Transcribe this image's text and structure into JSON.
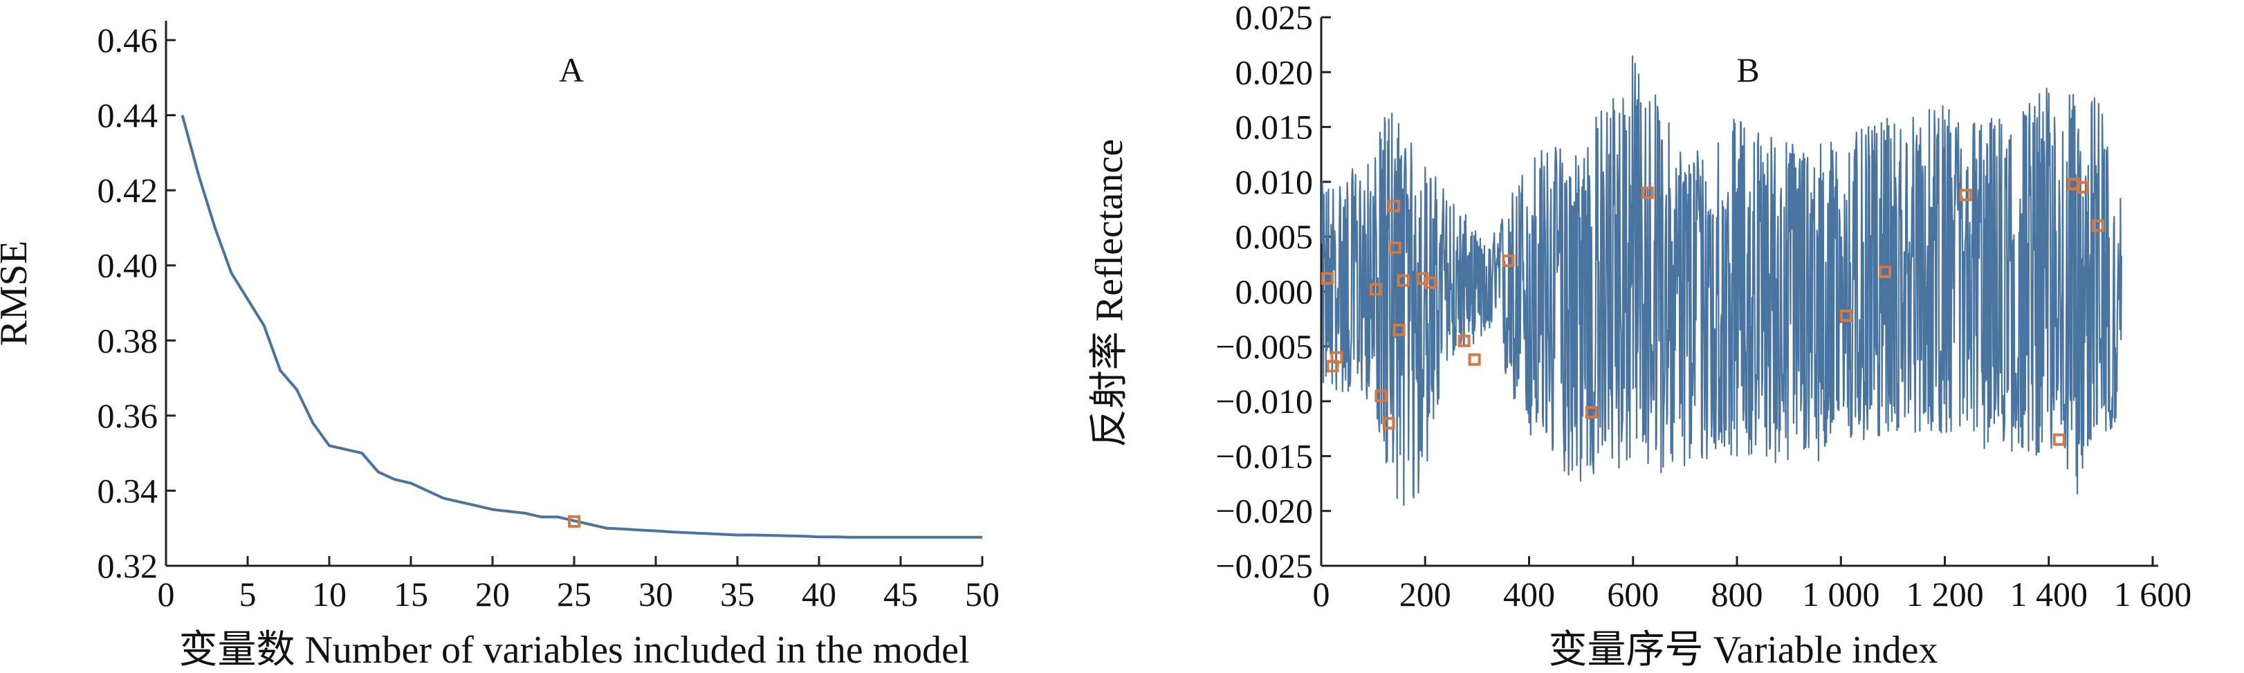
{
  "colors": {
    "line": "#4a74a0",
    "marker": "#d27a45",
    "axis": "#222222"
  },
  "chart_data": [
    {
      "type": "line",
      "panel_label": "A",
      "title": "",
      "xlabel": "变量数 Number of variables included in the model",
      "ylabel": "RMSE",
      "xlim": [
        0,
        50
      ],
      "ylim": [
        0.32,
        0.46
      ],
      "xticks": [
        0,
        5,
        10,
        15,
        20,
        25,
        30,
        35,
        40,
        45,
        50
      ],
      "yticks": [
        0.32,
        0.34,
        0.36,
        0.38,
        0.4,
        0.42,
        0.44,
        0.46
      ],
      "xtick_labels": [
        "0",
        "5",
        "10",
        "15",
        "20",
        "25",
        "30",
        "35",
        "40",
        "45",
        "50"
      ],
      "ytick_labels": [
        "0.32",
        "0.34",
        "0.36",
        "0.38",
        "0.40",
        "0.42",
        "0.44",
        "0.46"
      ],
      "grid": false,
      "series": [
        {
          "x": [
            1,
            2,
            3,
            4,
            5,
            6,
            7,
            8,
            9,
            10,
            11,
            12,
            13,
            14,
            15,
            16,
            17,
            18,
            19,
            20,
            21,
            22,
            23,
            24,
            25,
            26,
            27,
            28,
            29,
            30,
            31,
            32,
            33,
            34,
            35,
            36,
            37,
            38,
            39,
            40,
            41,
            42,
            43,
            44,
            45,
            46,
            47,
            48,
            49,
            50
          ],
          "values": [
            0.44,
            0.424,
            0.41,
            0.398,
            0.391,
            0.384,
            0.372,
            0.367,
            0.358,
            0.352,
            0.351,
            0.35,
            0.345,
            0.343,
            0.342,
            0.34,
            0.338,
            0.337,
            0.336,
            0.335,
            0.3345,
            0.334,
            0.333,
            0.333,
            0.332,
            0.331,
            0.33,
            0.3298,
            0.3295,
            0.3293,
            0.329,
            0.3288,
            0.3286,
            0.3284,
            0.3282,
            0.3282,
            0.3281,
            0.328,
            0.3279,
            0.3277,
            0.3277,
            0.3276,
            0.3276,
            0.3276,
            0.3276,
            0.3276,
            0.3276,
            0.3276,
            0.3276,
            0.3276
          ]
        }
      ],
      "highlight_points": [
        {
          "x": 25,
          "y": 0.3318
        }
      ]
    },
    {
      "type": "line",
      "panel_label": "B",
      "title": "",
      "xlabel": "变量序号 Variable index",
      "ylabel": "反射率 Reflectance",
      "xlim": [
        0,
        1600
      ],
      "ylim": [
        -0.025,
        0.025
      ],
      "xticks": [
        0,
        200,
        400,
        600,
        800,
        1000,
        1200,
        1400,
        1600
      ],
      "yticks": [
        -0.025,
        -0.02,
        -0.015,
        -0.01,
        -0.005,
        0.0,
        0.005,
        0.01,
        0.015,
        0.02,
        0.025
      ],
      "xtick_labels": [
        "0",
        "200",
        "400",
        "600",
        "800",
        "1 000",
        "1 200",
        "1 400",
        "1 600"
      ],
      "ytick_labels": [
        "−0.025",
        "−0.020",
        "−0.015",
        "−0.010",
        "−0.005",
        "0.000",
        "0.005",
        "0.010",
        "0.015",
        "0.020",
        "0.025"
      ],
      "grid": false,
      "signal": {
        "x_range": [
          1,
          1540
        ],
        "envelope": [
          {
            "x": 0,
            "max": 0.01,
            "min": -0.009
          },
          {
            "x": 100,
            "max": 0.012,
            "min": -0.01
          },
          {
            "x": 130,
            "max": 0.018,
            "min": -0.018
          },
          {
            "x": 180,
            "max": 0.013,
            "min": -0.021
          },
          {
            "x": 250,
            "max": 0.009,
            "min": -0.006
          },
          {
            "x": 320,
            "max": 0.004,
            "min": -0.004
          },
          {
            "x": 400,
            "max": 0.013,
            "min": -0.014
          },
          {
            "x": 500,
            "max": 0.014,
            "min": -0.018
          },
          {
            "x": 600,
            "max": 0.022,
            "min": -0.016
          },
          {
            "x": 700,
            "max": 0.013,
            "min": -0.017
          },
          {
            "x": 800,
            "max": 0.016,
            "min": -0.015
          },
          {
            "x": 900,
            "max": 0.014,
            "min": -0.016
          },
          {
            "x": 1000,
            "max": 0.014,
            "min": -0.015
          },
          {
            "x": 1100,
            "max": 0.016,
            "min": -0.013
          },
          {
            "x": 1200,
            "max": 0.017,
            "min": -0.013
          },
          {
            "x": 1300,
            "max": 0.016,
            "min": -0.015
          },
          {
            "x": 1400,
            "max": 0.019,
            "min": -0.015
          },
          {
            "x": 1450,
            "max": 0.018,
            "min": -0.019
          },
          {
            "x": 1500,
            "max": 0.018,
            "min": -0.014
          },
          {
            "x": 1540,
            "max": 0.008,
            "min": -0.012
          }
        ]
      },
      "selected_points": [
        {
          "x": 12,
          "y": 0.0012
        },
        {
          "x": 22,
          "y": -0.0068
        },
        {
          "x": 30,
          "y": -0.006
        },
        {
          "x": 105,
          "y": 0.0002
        },
        {
          "x": 115,
          "y": -0.0095
        },
        {
          "x": 130,
          "y": -0.012
        },
        {
          "x": 140,
          "y": 0.0078
        },
        {
          "x": 142,
          "y": 0.004
        },
        {
          "x": 150,
          "y": -0.0035
        },
        {
          "x": 158,
          "y": 0.001
        },
        {
          "x": 195,
          "y": 0.0012
        },
        {
          "x": 210,
          "y": 0.0008
        },
        {
          "x": 275,
          "y": -0.0045
        },
        {
          "x": 295,
          "y": -0.0062
        },
        {
          "x": 360,
          "y": 0.0028
        },
        {
          "x": 520,
          "y": -0.011
        },
        {
          "x": 628,
          "y": 0.009
        },
        {
          "x": 1010,
          "y": -0.0022
        },
        {
          "x": 1085,
          "y": 0.0018
        },
        {
          "x": 1240,
          "y": 0.0088
        },
        {
          "x": 1420,
          "y": -0.0135
        },
        {
          "x": 1448,
          "y": 0.0098
        },
        {
          "x": 1465,
          "y": 0.0095
        },
        {
          "x": 1495,
          "y": 0.006
        }
      ]
    }
  ]
}
